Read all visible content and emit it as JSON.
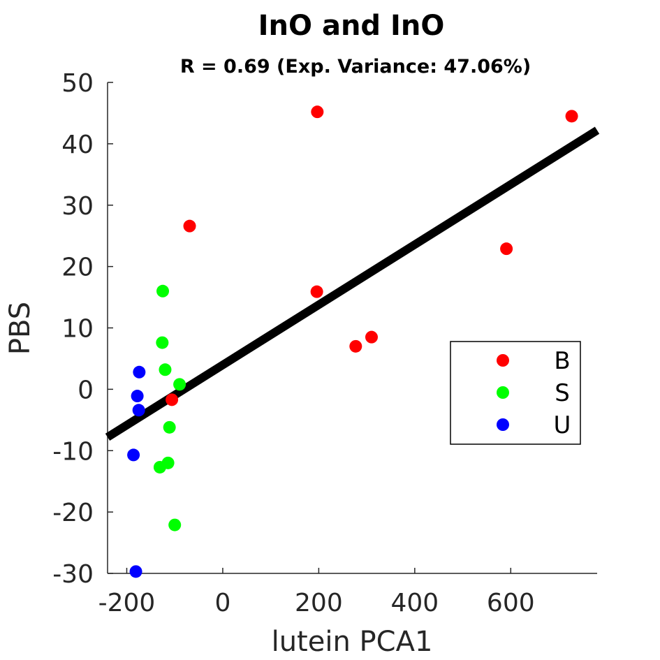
{
  "chart_data": {
    "type": "scatter",
    "title": "InO and InO",
    "subtitle": "R = 0.69 (Exp. Variance: 47.06%)",
    "xlabel": "lutein PCA1",
    "ylabel": "PBS",
    "xlim": [
      -240,
      780
    ],
    "ylim": [
      -30,
      50
    ],
    "xticks": [
      -200,
      0,
      200,
      400,
      600
    ],
    "yticks": [
      -30,
      -20,
      -10,
      0,
      10,
      20,
      30,
      40,
      50
    ],
    "grid": false,
    "legend_position": "right",
    "series": [
      {
        "name": "B",
        "color": "#ff0000",
        "points": [
          {
            "x": 197,
            "y": 45.2
          },
          {
            "x": 727,
            "y": 44.5
          },
          {
            "x": -69,
            "y": 26.6
          },
          {
            "x": 591,
            "y": 22.9
          },
          {
            "x": 196,
            "y": 15.9
          },
          {
            "x": 310,
            "y": 8.5
          },
          {
            "x": 277,
            "y": 7.0
          },
          {
            "x": -106,
            "y": -1.7
          }
        ]
      },
      {
        "name": "S",
        "color": "#00ff00",
        "points": [
          {
            "x": -125,
            "y": 16.0
          },
          {
            "x": -126,
            "y": 7.6
          },
          {
            "x": -120,
            "y": 3.2
          },
          {
            "x": -90,
            "y": 0.8
          },
          {
            "x": -111,
            "y": -6.2
          },
          {
            "x": -114,
            "y": -12.0
          },
          {
            "x": -131,
            "y": -12.7
          },
          {
            "x": -100,
            "y": -22.1
          }
        ]
      },
      {
        "name": "U",
        "color": "#0000ff",
        "points": [
          {
            "x": -174,
            "y": 2.8
          },
          {
            "x": -178,
            "y": -1.1
          },
          {
            "x": -175,
            "y": -3.4
          },
          {
            "x": -186,
            "y": -10.7
          },
          {
            "x": -181,
            "y": -29.7
          }
        ]
      }
    ],
    "fit_line": {
      "color": "#000000",
      "x": [
        -240,
        780
      ],
      "y": [
        -7.8,
        42.2
      ]
    }
  }
}
